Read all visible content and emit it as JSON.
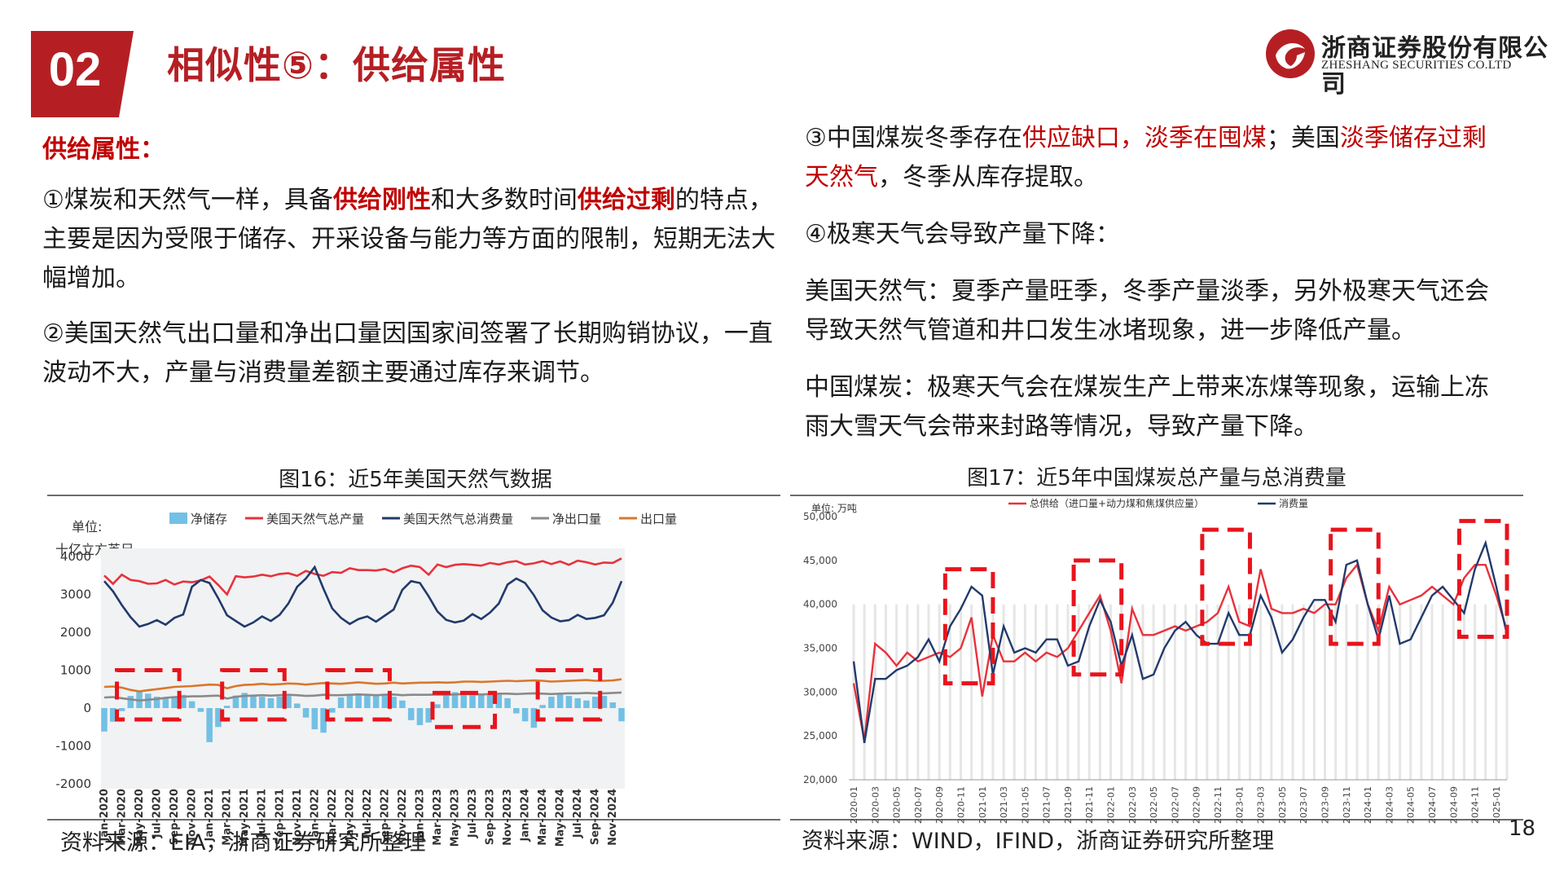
{
  "header": {
    "badge": "02",
    "title": "相似性⑤：供给属性",
    "logo_cn": "浙商证券股份有限公司",
    "logo_en": "ZHESHANG SECURITIES CO.LTD"
  },
  "left_text": {
    "subtitle": "供给属性：",
    "p1_a": "①煤炭和天然气一样，具备",
    "p1_b": "供给刚性",
    "p1_c": "和大多数时间",
    "p1_d": "供给过剩",
    "p1_e": "的特点，主要是因为受限于储存、开采设备与能力等方面的限制，短期无法大幅增加。",
    "p2": "②美国天然气出口量和净出口量因国家间签署了长期购销协议，一直波动不大，产量与消费量差额主要通过库存来调节。"
  },
  "right_text": {
    "p3_a": "③中国煤炭冬季存在",
    "p3_b": "供应缺口，淡季在囤煤",
    "p3_c": "；美国",
    "p3_d": "淡季储存过剩天然气",
    "p3_e": "，冬季从库存提取。",
    "p4": "④极寒天气会导致产量下降：",
    "p5": "美国天然气：夏季产量旺季，冬季产量淡季，另外极寒天气还会导致天然气管道和井口发生冰堵现象，进一步降低产量。",
    "p6": "中国煤炭：极寒天气会在煤炭生产上带来冻煤等现象，运输上冻雨大雪天气会带来封路等情况，导致产量下降。"
  },
  "fig16": {
    "caption": "图16：近5年美国天然气数据",
    "source": "资料来源：EIA，浙商证券研究所整理"
  },
  "fig17": {
    "caption": "图17：近5年中国煤炭总产量与总消费量",
    "source": "资料来源：WIND，IFIND，浙商证券研究所整理"
  },
  "page_number": "18",
  "colors": {
    "accent": "#b51f24",
    "red_line": "#e8323c",
    "navy_line": "#223a6b",
    "net_export": "#8a8a8a",
    "export": "#d9772b",
    "bar": "#72c0e5"
  },
  "chart_data": [
    {
      "type": "bar",
      "unit_label": [
        "单位:",
        "十亿立方英尺"
      ],
      "legend": [
        "净储存",
        "美国天然气总产量",
        "美国天然气总消费量",
        "净出口量",
        "出口量"
      ],
      "legend_placement": "top",
      "ylim": [
        -2000,
        4000
      ],
      "yticks": [
        4000,
        3000,
        2000,
        1000,
        0,
        -1000,
        -2000
      ],
      "x_tick_labels": [
        "Jan-2020",
        "Mar-2020",
        "May-2020",
        "Jul-2020",
        "Sep-2020",
        "Nov-2020",
        "Jan-2021",
        "Mar-2021",
        "May-2021",
        "Jul-2021",
        "Sep-2021",
        "Nov-2021",
        "Jan-2022",
        "Mar-2022",
        "May-2022",
        "Jul-2022",
        "Sep-2022",
        "Nov-2022",
        "Jan-2023",
        "Mar-2023",
        "May-2023",
        "Jul-2023",
        "Sep-2023",
        "Nov-2023",
        "Jan-2024",
        "Mar-2024",
        "May-2024",
        "Jul-2024",
        "Sep-2024",
        "Nov-2024"
      ],
      "months": 60,
      "series": [
        {
          "name": "净储存",
          "kind": "bar",
          "values": [
            -620,
            -360,
            -80,
            320,
            450,
            380,
            300,
            250,
            280,
            350,
            180,
            -100,
            -900,
            -500,
            60,
            330,
            400,
            350,
            300,
            260,
            300,
            320,
            120,
            -250,
            -560,
            -650,
            -120,
            280,
            360,
            390,
            330,
            340,
            380,
            300,
            200,
            -320,
            -450,
            -380,
            100,
            350,
            420,
            430,
            370,
            350,
            400,
            390,
            260,
            -140,
            -350,
            -520,
            80,
            300,
            380,
            320,
            260,
            200,
            300,
            320,
            150,
            -350
          ]
        },
        {
          "name": "美国天然气总产量",
          "kind": "line",
          "values": [
            3500,
            3280,
            3520,
            3380,
            3350,
            3280,
            3290,
            3380,
            3260,
            3340,
            3320,
            3370,
            3470,
            3250,
            3000,
            3480,
            3450,
            3470,
            3520,
            3480,
            3540,
            3560,
            3490,
            3620,
            3540,
            3490,
            3590,
            3570,
            3690,
            3640,
            3640,
            3630,
            3670,
            3580,
            3690,
            3760,
            3720,
            3520,
            3790,
            3720,
            3780,
            3800,
            3780,
            3760,
            3830,
            3790,
            3850,
            3880,
            3790,
            3820,
            3880,
            3800,
            3870,
            3780,
            3890,
            3850,
            3790,
            3840,
            3830,
            3950
          ]
        },
        {
          "name": "美国天然气总消费量",
          "kind": "line",
          "values": [
            3350,
            3080,
            2720,
            2400,
            2150,
            2220,
            2320,
            2200,
            2380,
            2470,
            3200,
            3380,
            3300,
            2900,
            2450,
            2300,
            2150,
            2260,
            2420,
            2300,
            2460,
            2760,
            3200,
            3420,
            3720,
            3150,
            2630,
            2380,
            2220,
            2350,
            2420,
            2280,
            2440,
            2600,
            3120,
            3350,
            3300,
            2950,
            2550,
            2330,
            2260,
            2310,
            2480,
            2350,
            2520,
            2760,
            3260,
            3420,
            3300,
            2980,
            2580,
            2390,
            2290,
            2320,
            2460,
            2350,
            2380,
            2450,
            2780,
            3350
          ]
        },
        {
          "name": "净出口量",
          "kind": "line",
          "values": [
            280,
            290,
            260,
            230,
            200,
            220,
            240,
            270,
            290,
            300,
            310,
            310,
            320,
            330,
            250,
            300,
            320,
            330,
            340,
            330,
            340,
            350,
            340,
            320,
            330,
            350,
            340,
            340,
            350,
            360,
            350,
            340,
            350,
            360,
            340,
            350,
            350,
            350,
            360,
            350,
            360,
            370,
            370,
            360,
            370,
            380,
            380,
            370,
            380,
            390,
            380,
            370,
            380,
            390,
            390,
            400,
            390,
            390,
            400,
            410
          ]
        },
        {
          "name": "出口量",
          "kind": "line",
          "values": [
            560,
            570,
            540,
            480,
            440,
            470,
            500,
            530,
            560,
            570,
            580,
            600,
            620,
            610,
            520,
            580,
            610,
            620,
            640,
            620,
            630,
            650,
            640,
            620,
            640,
            660,
            650,
            640,
            660,
            680,
            660,
            640,
            650,
            670,
            650,
            660,
            670,
            670,
            680,
            670,
            680,
            700,
            700,
            690,
            700,
            710,
            720,
            710,
            720,
            730,
            720,
            700,
            710,
            720,
            730,
            740,
            720,
            720,
            730,
            760
          ]
        }
      ]
    },
    {
      "type": "line",
      "unit_label": "单位: 万吨",
      "legend": [
        "总供给（进口量+动力煤和焦煤供应量）",
        "消费量"
      ],
      "legend_placement": "top",
      "ylim": [
        20000,
        50000
      ],
      "yticks": [
        "50,000",
        "45,000",
        "40,000",
        "35,000",
        "30,000",
        "25,000",
        "20,000"
      ],
      "x_tick_labels": [
        "2020-01",
        "2020-03",
        "2020-05",
        "2020-07",
        "2020-09",
        "2020-11",
        "2021-01",
        "2021-03",
        "2021-05",
        "2021-07",
        "2021-09",
        "2021-11",
        "2022-01",
        "2022-03",
        "2022-05",
        "2022-07",
        "2022-09",
        "2022-11",
        "2023-01",
        "2023-03",
        "2023-05",
        "2023-07",
        "2023-09",
        "2023-11",
        "2024-01",
        "2024-03",
        "2024-05",
        "2024-07",
        "2024-09",
        "2024-11",
        "2025-01"
      ],
      "x_months": [
        "2020-01",
        "2020-02",
        "2020-03",
        "2020-04",
        "2020-05",
        "2020-06",
        "2020-07",
        "2020-08",
        "2020-09",
        "2020-10",
        "2020-11",
        "2020-12",
        "2021-01",
        "2021-02",
        "2021-03",
        "2021-04",
        "2021-05",
        "2021-06",
        "2021-07",
        "2021-08",
        "2021-09",
        "2021-10",
        "2021-11",
        "2021-12",
        "2022-01",
        "2022-02",
        "2022-03",
        "2022-04",
        "2022-05",
        "2022-06",
        "2022-07",
        "2022-08",
        "2022-09",
        "2022-10",
        "2022-11",
        "2022-12",
        "2023-01",
        "2023-02",
        "2023-03",
        "2023-04",
        "2023-05",
        "2023-06",
        "2023-07",
        "2023-08",
        "2023-09",
        "2023-10",
        "2023-11",
        "2023-12",
        "2024-01",
        "2024-02",
        "2024-03",
        "2024-04",
        "2024-05",
        "2024-06",
        "2024-07",
        "2024-08",
        "2024-09",
        "2024-10",
        "2024-11",
        "2024-12",
        "2025-01",
        "2025-02"
      ],
      "series": [
        {
          "name": "总供给（进口量+动力煤和焦煤供应量）",
          "values": [
            31000,
            24500,
            35500,
            34500,
            33000,
            34500,
            33500,
            34000,
            34500,
            34000,
            35000,
            38500,
            29500,
            36500,
            33500,
            33500,
            34500,
            33500,
            34500,
            34000,
            35000,
            37000,
            39000,
            41000,
            37000,
            31000,
            39500,
            36500,
            36500,
            37000,
            37500,
            37000,
            37500,
            38000,
            39000,
            42000,
            38000,
            37500,
            44000,
            39500,
            39000,
            39000,
            39500,
            39000,
            40000,
            40000,
            43000,
            44500,
            40000,
            37000,
            42000,
            40000,
            40500,
            41000,
            42000,
            41000,
            40000,
            43000,
            44500,
            44500,
            41000,
            37000
          ]
        },
        {
          "name": "消费量",
          "values": [
            33500,
            24200,
            31500,
            31500,
            32500,
            33000,
            34000,
            36000,
            33500,
            37500,
            39500,
            42000,
            41000,
            32000,
            37500,
            34500,
            35000,
            34500,
            36000,
            36000,
            33000,
            33500,
            37500,
            40500,
            38000,
            33000,
            36500,
            31500,
            32000,
            35000,
            37000,
            38000,
            36500,
            35500,
            35500,
            39000,
            36500,
            36500,
            41000,
            38500,
            34500,
            36000,
            38500,
            40500,
            40500,
            38000,
            44500,
            45000,
            40000,
            36000,
            41000,
            35500,
            36000,
            38500,
            41000,
            42000,
            40500,
            39000,
            44000,
            47000,
            42000,
            36500
          ]
        }
      ]
    }
  ]
}
